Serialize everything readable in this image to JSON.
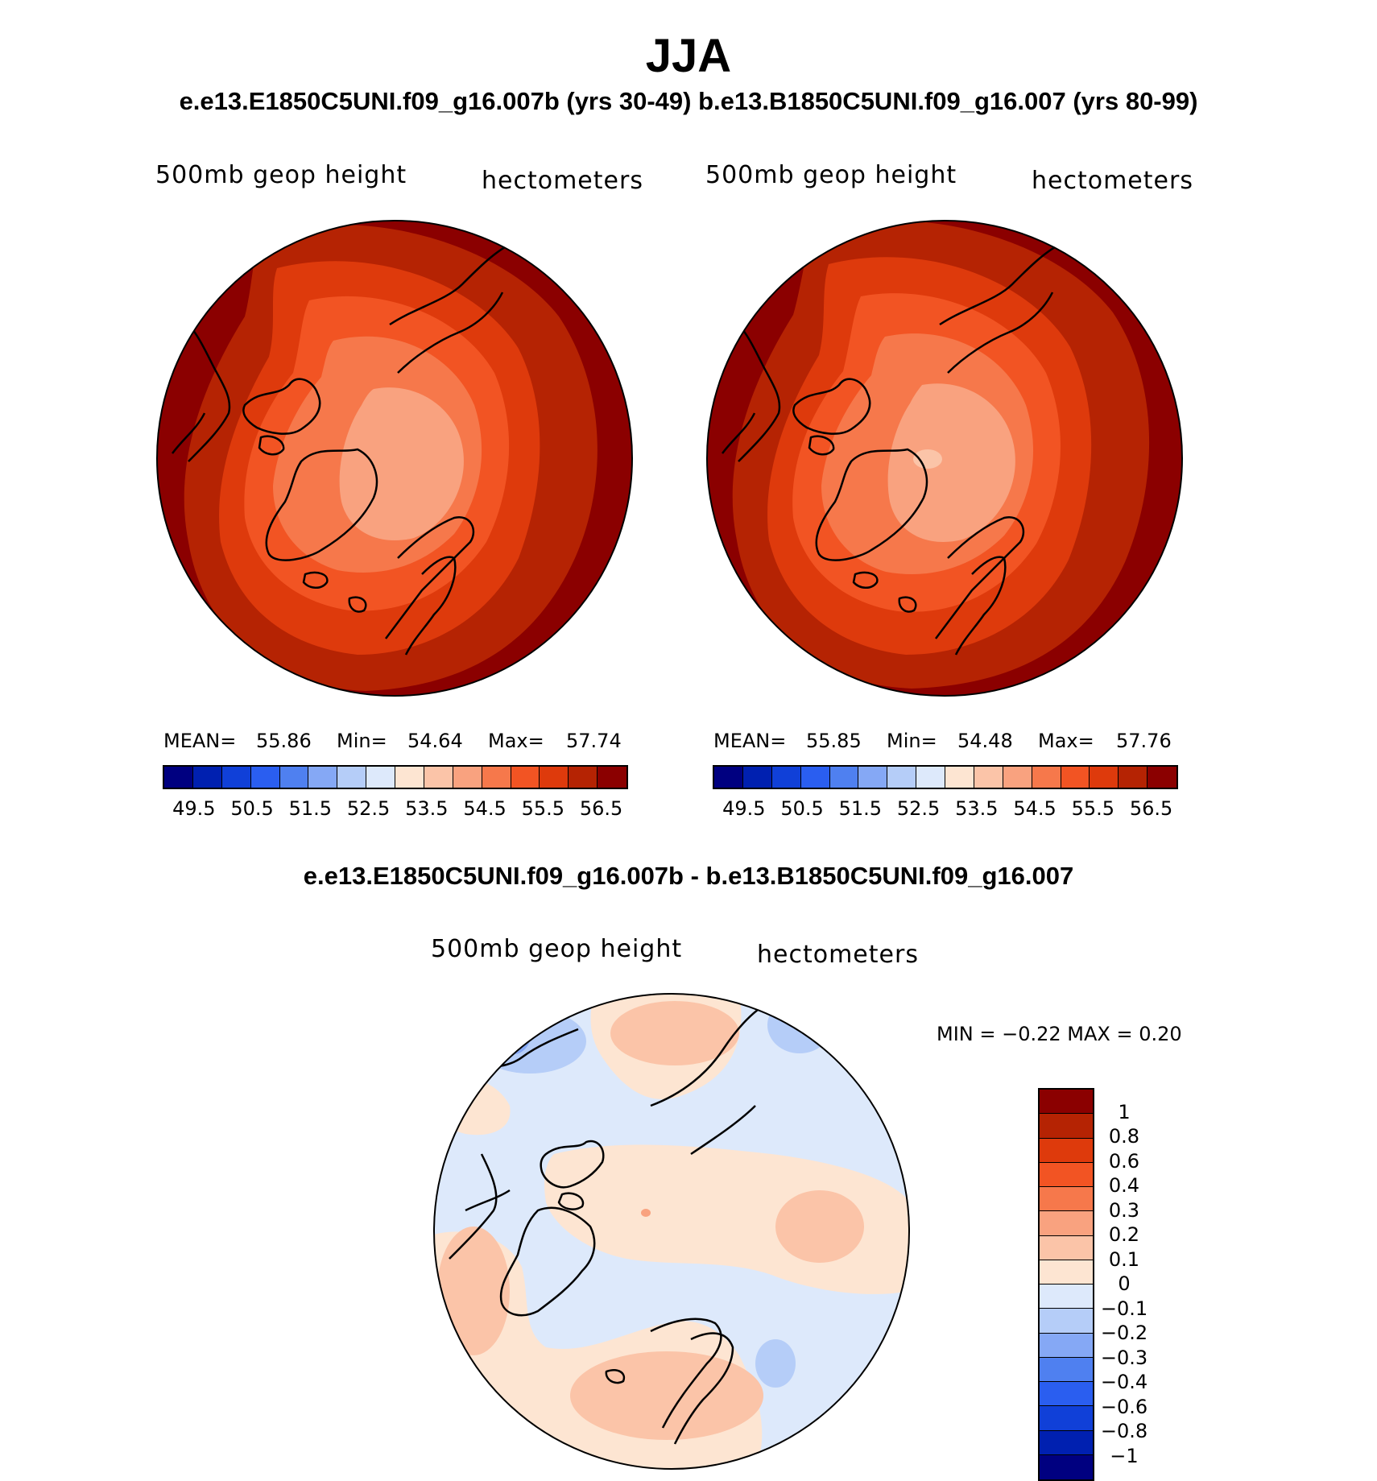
{
  "title": "JJA",
  "subtitle": "e.e13.E1850C5UNI.f09_g16.007b (yrs 30-49)  b.e13.B1850C5UNI.f09_g16.007 (yrs 80-99)",
  "diff_title": "e.e13.E1850C5UNI.f09_g16.007b - b.e13.B1850C5UNI.f09_g16.007",
  "panels": [
    {
      "variable": "500mb geop height",
      "units": "hectometers",
      "mean_label": "MEAN=",
      "mean": "55.86",
      "min_label": "Min=",
      "min": "54.64",
      "max_label": "Max=",
      "max": "57.74"
    },
    {
      "variable": "500mb geop height",
      "units": "hectometers",
      "mean_label": "MEAN=",
      "mean": "55.85",
      "min_label": "Min=",
      "min": "54.48",
      "max_label": "Max=",
      "max": "57.76"
    }
  ],
  "diff_panel": {
    "variable": "500mb geop height",
    "units": "hectometers",
    "minmax": "MIN =   −0.22  MAX =    0.20"
  },
  "colorbar_fields": {
    "labels": [
      "49.5",
      "50.5",
      "51.5",
      "52.5",
      "53.5",
      "54.5",
      "55.5",
      "56.5"
    ],
    "colors": [
      "#000080",
      "#0020b0",
      "#1040d8",
      "#2a5ef0",
      "#4f80f0",
      "#85a8f5",
      "#b5cdf8",
      "#dde9fb",
      "#fde5d2",
      "#fbc4a8",
      "#f9a27f",
      "#f6784b",
      "#f25423",
      "#de3a0c",
      "#b52303",
      "#8b0000"
    ]
  },
  "colorbar_diff": {
    "labels": [
      "1",
      "0.8",
      "0.6",
      "0.4",
      "0.3",
      "0.2",
      "0.1",
      "0",
      "−0.1",
      "−0.2",
      "−0.3",
      "−0.4",
      "−0.6",
      "−0.8",
      "−1"
    ],
    "colors": [
      "#8b0000",
      "#b52303",
      "#de3a0c",
      "#f25423",
      "#f6784b",
      "#f9a27f",
      "#fbc4a8",
      "#fde5d2",
      "#dde9fb",
      "#b5cdf8",
      "#85a8f5",
      "#4f80f0",
      "#2a5ef0",
      "#1040d8",
      "#0020b0",
      "#000080"
    ]
  }
}
